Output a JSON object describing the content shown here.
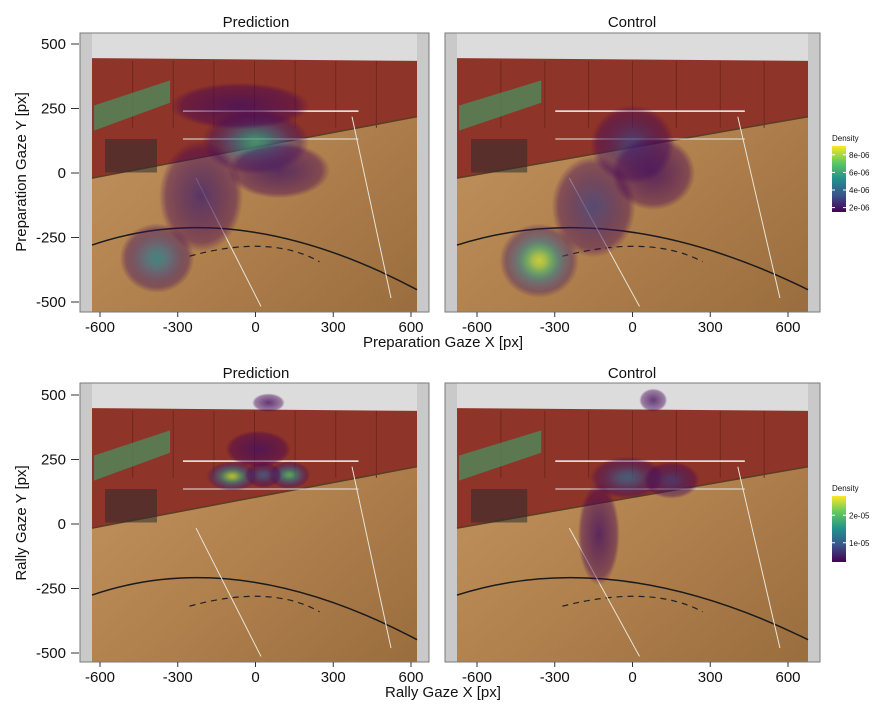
{
  "chart_data": [
    {
      "type": "heatmap",
      "row": "preparation",
      "xlabel": "Preparation Gaze X [px]",
      "ylabel": "Preparation Gaze Y [px]",
      "xlim": [
        -700,
        700
      ],
      "ylim": [
        -520,
        540
      ],
      "xticks": [
        -600,
        -300,
        0,
        300,
        600
      ],
      "yticks": [
        500,
        250,
        0,
        -250,
        -500
      ],
      "xtick_labels": [
        "-600",
        "-300",
        "0",
        "300",
        "600"
      ],
      "ytick_labels": [
        "500",
        "250",
        "0",
        "-250",
        "-500"
      ],
      "legend": {
        "title": "Density",
        "placement": "right",
        "range": [
          1.5e-06,
          9e-06
        ],
        "ticks": [
          2e-06,
          4e-06,
          6e-06,
          8e-06
        ],
        "tick_labels": [
          "2e-06",
          "4e-06",
          "6e-06",
          "8e-06"
        ]
      },
      "panels": [
        {
          "name": "Prediction",
          "peaks": [
            {
              "x": 0,
              "y": 120,
              "sx": 115,
              "sy": 70,
              "density": 6e-06
            },
            {
              "x": -380,
              "y": -330,
              "sx": 80,
              "sy": 75,
              "density": 4.8e-06
            },
            {
              "x": -210,
              "y": -90,
              "sx": 90,
              "sy": 120,
              "density": 2.2e-06
            },
            {
              "x": 90,
              "y": 10,
              "sx": 110,
              "sy": 60,
              "density": 2e-06
            },
            {
              "x": -60,
              "y": 260,
              "sx": 150,
              "sy": 50,
              "density": 1.8e-06
            }
          ]
        },
        {
          "name": "Control",
          "peaks": [
            {
              "x": -360,
              "y": -340,
              "sx": 85,
              "sy": 80,
              "density": 8.5e-06
            },
            {
              "x": 0,
              "y": 110,
              "sx": 90,
              "sy": 85,
              "density": 3e-06
            },
            {
              "x": -150,
              "y": -130,
              "sx": 90,
              "sy": 110,
              "density": 2.8e-06
            },
            {
              "x": 80,
              "y": 0,
              "sx": 90,
              "sy": 80,
              "density": 1.8e-06
            }
          ]
        }
      ]
    },
    {
      "type": "heatmap",
      "row": "rally",
      "xlabel": "Rally Gaze X [px]",
      "ylabel": "Rally Gaze Y [px]",
      "xlim": [
        -700,
        700
      ],
      "ylim": [
        -520,
        540
      ],
      "xticks": [
        -600,
        -300,
        0,
        300,
        600
      ],
      "yticks": [
        500,
        250,
        0,
        -250,
        -500
      ],
      "xtick_labels": [
        "-600",
        "-300",
        "0",
        "300",
        "600"
      ],
      "ytick_labels": [
        "500",
        "250",
        "0",
        "-250",
        "-500"
      ],
      "legend": {
        "title": "Density",
        "placement": "right",
        "range": [
          3e-06,
          2.7e-05
        ],
        "ticks": [
          1e-05,
          2e-05
        ],
        "tick_labels": [
          "1e-05",
          "2e-05"
        ]
      },
      "panels": [
        {
          "name": "Prediction",
          "peaks": [
            {
              "x": -90,
              "y": 185,
              "sx": 55,
              "sy": 32,
              "density": 2.5e-05
            },
            {
              "x": 130,
              "y": 190,
              "sx": 45,
              "sy": 30,
              "density": 2e-05
            },
            {
              "x": 30,
              "y": 190,
              "sx": 40,
              "sy": 28,
              "density": 1e-05
            },
            {
              "x": 10,
              "y": 290,
              "sx": 70,
              "sy": 40,
              "density": 4e-06
            },
            {
              "x": 50,
              "y": 470,
              "sx": 35,
              "sy": 20,
              "density": 3.5e-06
            }
          ]
        },
        {
          "name": "Control",
          "peaks": [
            {
              "x": -20,
              "y": 180,
              "sx": 80,
              "sy": 45,
              "density": 1.1e-05
            },
            {
              "x": 150,
              "y": 170,
              "sx": 60,
              "sy": 40,
              "density": 7e-06
            },
            {
              "x": -130,
              "y": -40,
              "sx": 45,
              "sy": 110,
              "density": 4e-06
            },
            {
              "x": 80,
              "y": 480,
              "sx": 30,
              "sy": 25,
              "density": 4e-06
            }
          ]
        }
      ]
    }
  ],
  "background": {
    "description_colors": {
      "wall_red": "#9a3a2f",
      "wall_top": "#d9d9d9",
      "floor_wood": "#b88a55",
      "floor_dark": "#8a6238",
      "panel_border": "#bdbdbd"
    }
  }
}
